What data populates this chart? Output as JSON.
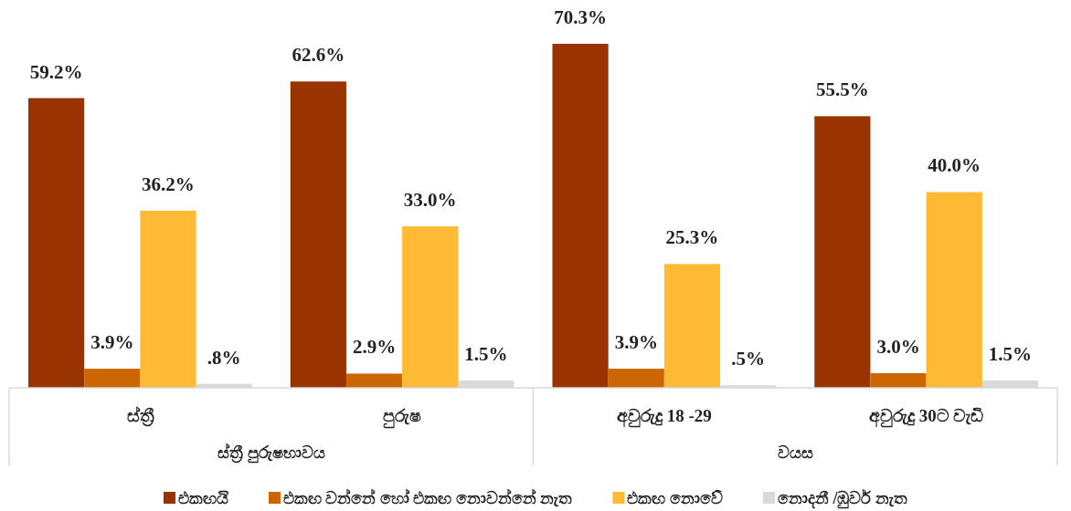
{
  "chart_data": {
    "type": "bar",
    "categories": [
      "ස්ත්‍රී",
      "පුරුෂ",
      "අවුරුදු 18 -29",
      "අවුරුදු 30ට වැඩි"
    ],
    "annotations": [
      "ස්ත්‍රී පුරුෂභාවය",
      "වයස"
    ],
    "legend": "bottom",
    "series": [
      {
        "name": "එකඟයි",
        "color": "#993300",
        "values": [
          59.2,
          62.6,
          70.3,
          55.5
        ],
        "value_labels": [
          "59.2%",
          "62.6%",
          "70.3%",
          "55.5%"
        ]
      },
      {
        "name": "එකඟ වන්නේ හෝ එකඟ නොවන්නේ නැත",
        "color": "#cc6600",
        "values": [
          3.9,
          2.9,
          3.9,
          3.0
        ],
        "value_labels": [
          "3.9%",
          "2.9%",
          "3.9%",
          "3.0%"
        ]
      },
      {
        "name": "එකඟ නොවේ",
        "color": "#ffba35",
        "values": [
          36.2,
          33.0,
          25.3,
          40.0
        ],
        "value_labels": [
          "36.2%",
          "33.0%",
          "25.3%",
          "40.0%"
        ]
      },
      {
        "name": "නොදනී /ඹුවර් නැත",
        "color": "#d9d9d9",
        "values": [
          0.8,
          1.5,
          0.5,
          1.5
        ],
        "value_labels": [
          ".8%",
          "1.5%",
          ".5%",
          "1.5%"
        ]
      }
    ]
  }
}
